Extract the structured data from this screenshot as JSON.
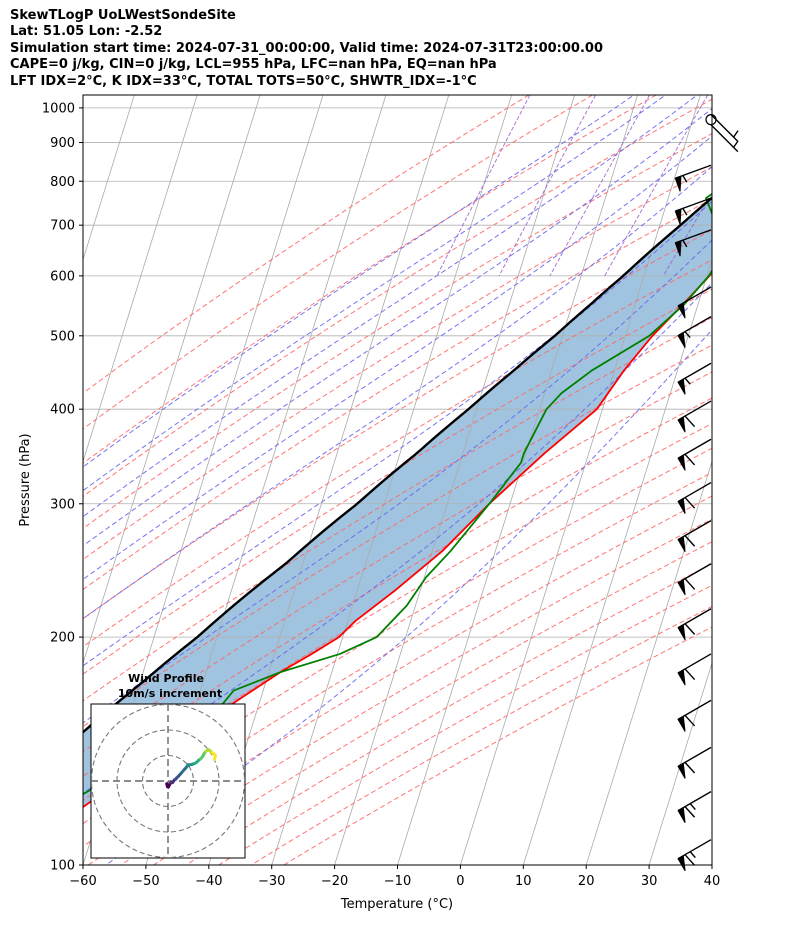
{
  "header": {
    "title": "SkewTLogP UoLWestSondeSite",
    "location": "Lat: 51.05   Lon: -2.52",
    "times": "Simulation start time: 2024-07-31_00:00:00, Valid time: 2024-07-31T23:00:00.00",
    "indices1": "CAPE=0 j/kg, CIN=0 j/kg, LCL=955 hPa, LFC=nan hPa, EQ=nan hPa",
    "indices2": "LFT IDX=2$^\\circ$C, K IDX=33$^\\circ$C, TOTAL TOTS=50$^\\circ$C, SHWTR_IDX=-1$^\\circ$C"
  },
  "chart_data": {
    "type": "line",
    "subtype": "skew-t log-p",
    "xlabel": "Temperature ($^\\circ$C)",
    "ylabel": "Pressure (hPa)",
    "xlim": [
      -60,
      40
    ],
    "ylim": [
      1040,
      100
    ],
    "y_scale": "log",
    "grid": true,
    "x_ticks": [
      -60,
      -50,
      -40,
      -30,
      -20,
      -10,
      0,
      10,
      20,
      30,
      40
    ],
    "x_tick_labels": [
      "−60",
      "−50",
      "−40",
      "−30",
      "−20",
      "−10",
      "0",
      "10",
      "20",
      "30",
      "40"
    ],
    "y_ticks": [
      1000,
      900,
      800,
      700,
      600,
      500,
      400,
      300,
      200,
      100
    ],
    "y_tick_labels": [
      "1000",
      "900",
      "800",
      "700",
      "600",
      "500",
      "400",
      "300",
      "200",
      "100"
    ],
    "colors": {
      "temperature": "#ff0000",
      "dewpoint": "#008000",
      "parcel": "#000000",
      "shade": "#a0c4e0",
      "dry_adiabat": "#ff6666",
      "moist_adiabat": "#6666ee",
      "mixing_ratio": "#9955cc",
      "isotherm": "#aaaaaa"
    },
    "series": [
      {
        "key": "temperature",
        "pressure": [
          1000,
          990,
          980,
          960,
          930,
          900,
          860,
          830,
          800,
          750,
          700,
          650,
          600,
          550,
          500,
          450,
          400,
          350,
          300,
          260,
          230,
          210,
          200,
          190,
          180,
          170,
          160,
          150,
          140,
          130,
          120,
          110,
          100
        ],
        "values": [
          19.2,
          20.6,
          22.7,
          24.5,
          25.1,
          23.8,
          21.1,
          20.0,
          19.2,
          17.5,
          14.6,
          12.3,
          10.4,
          7.6,
          4.3,
          1.5,
          -0.9,
          -7.0,
          -13.3,
          -18.4,
          -24.1,
          -28.8,
          -30.6,
          -34.1,
          -38.1,
          -41.7,
          -45.5,
          -49.6,
          -53.9,
          -58.2,
          -62.5,
          -67.7,
          -73.7
        ]
      },
      {
        "key": "dewpoint",
        "pressure": [
          1000,
          990,
          980,
          960,
          930,
          900,
          860,
          830,
          800,
          760,
          720,
          700,
          650,
          600,
          550,
          500,
          450,
          420,
          400,
          350,
          340,
          300,
          260,
          240,
          220,
          200,
          190,
          180,
          170,
          160,
          150,
          140,
          130,
          120,
          110,
          100
        ],
        "values": [
          16.6,
          17.3,
          17.0,
          16.6,
          16.0,
          15.2,
          13.7,
          12.0,
          9.0,
          6.0,
          8.0,
          10.2,
          11.6,
          10.3,
          7.8,
          3.8,
          -3.6,
          -7.3,
          -8.9,
          -10.3,
          -10.3,
          -13.3,
          -17.1,
          -19.7,
          -21.4,
          -24.6,
          -29.6,
          -38.0,
          -44.7,
          -46.3,
          -49.9,
          -54.8,
          -60.1,
          -65.9,
          -71.5,
          -78.2
        ]
      },
      {
        "key": "parcel",
        "pressure": [
          1000,
          955,
          900,
          850,
          800,
          750,
          700,
          650,
          600,
          550,
          500,
          450,
          400,
          350,
          300,
          250,
          200,
          175,
          150,
          125,
          100
        ],
        "values": [
          19.3,
          16.9,
          14.5,
          11.8,
          9.2,
          6.3,
          3.3,
          0.0,
          -3.3,
          -7.1,
          -11.2,
          -16.0,
          -21.3,
          -27.3,
          -34.3,
          -42.7,
          -53.1,
          -59.4,
          -66.5,
          -74.9,
          -85.3
        ]
      }
    ],
    "wind_barbs": {
      "pressure": [
        980,
        965,
        950,
        840,
        760,
        690,
        580,
        530,
        460,
        410,
        365,
        320,
        285,
        250,
        218,
        190,
        165,
        143,
        125,
        108
      ],
      "direction_deg": [
        135,
        0,
        135,
        250,
        250,
        250,
        240,
        240,
        240,
        240,
        240,
        240,
        240,
        240,
        240,
        240,
        240,
        240,
        240,
        240
      ],
      "speed_kt": [
        5,
        0,
        5,
        55,
        55,
        55,
        50,
        55,
        55,
        60,
        60,
        60,
        60,
        60,
        60,
        60,
        60,
        60,
        65,
        65
      ]
    },
    "hodograph": {
      "title": "Wind Profile",
      "subtitle": "10m/s increment",
      "rings_ms": [
        10,
        20,
        30
      ],
      "u_ms": [
        -0.5,
        -0.2,
        0.1,
        0.6,
        1.0,
        1.8,
        2.5,
        3.0,
        3.3,
        4.2,
        5.3,
        6.4,
        7.0,
        7.9,
        8.5,
        9.3,
        10.5,
        11.3,
        12.1,
        12.8,
        13.6,
        14.2,
        14.8,
        15.8,
        16.4,
        17.3,
        18.1,
        18.6,
        18.2
      ],
      "v_ms": [
        -1.1,
        -2.2,
        -2.4,
        -1.5,
        -0.8,
        -0.6,
        0.4,
        0.7,
        1.1,
        2.0,
        3.2,
        4.5,
        5.1,
        6.4,
        6.3,
        6.5,
        6.9,
        7.4,
        8.2,
        8.7,
        9.6,
        10.8,
        11.6,
        12.3,
        11.9,
        11.1,
        10.6,
        9.8,
        8.5
      ]
    }
  }
}
